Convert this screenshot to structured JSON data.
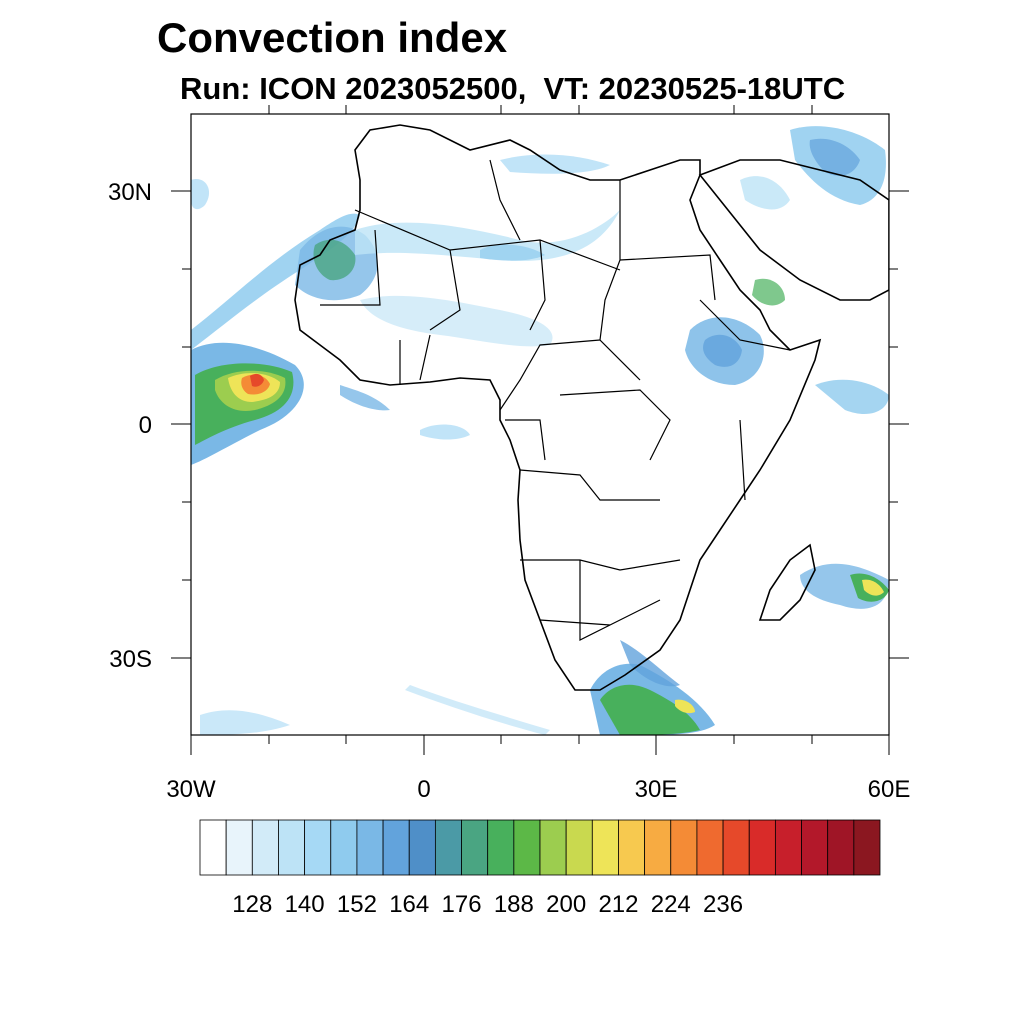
{
  "title": "Convection index",
  "subtitle": "Run: ICON 2023052500,  VT: 20230525-18UTC",
  "map": {
    "lon_range": [
      -30,
      60
    ],
    "lat_range": [
      -40,
      40
    ],
    "x_ticks": [
      {
        "lon": -30,
        "label": "30W"
      },
      {
        "lon": 0,
        "label": "0"
      },
      {
        "lon": 30,
        "label": "30E"
      },
      {
        "lon": 60,
        "label": "60E"
      }
    ],
    "y_ticks": [
      {
        "lat": 30,
        "label": "30N"
      },
      {
        "lat": 0,
        "label": "0"
      },
      {
        "lat": -30,
        "label": "30S"
      }
    ]
  },
  "colorbar": {
    "colors": [
      "#ffffff",
      "#e8f4fb",
      "#d2ebf8",
      "#bde3f6",
      "#a6d9f5",
      "#8fcbee",
      "#7ab8e6",
      "#62a3dc",
      "#4f8fc8",
      "#4b9aa6",
      "#4aa582",
      "#48b05c",
      "#5cb847",
      "#9ccd4f",
      "#c9d94f",
      "#eee458",
      "#f7c94f",
      "#f7ab42",
      "#f48b36",
      "#ef6a2f",
      "#e6492a",
      "#d92b29",
      "#c71f2b",
      "#b3182a",
      "#9f1526",
      "#8b1720"
    ],
    "labels": [
      "128",
      "140",
      "152",
      "164",
      "176",
      "188",
      "200",
      "212",
      "224",
      "236"
    ]
  }
}
